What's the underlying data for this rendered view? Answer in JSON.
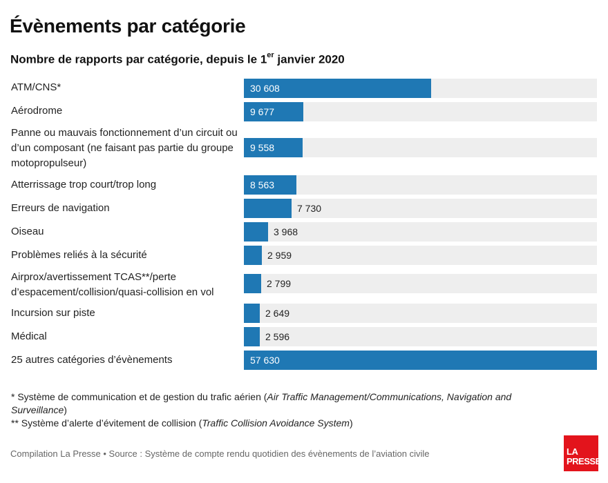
{
  "header": {
    "title": "Évènements par catégorie",
    "subtitle_pre": "Nombre de rapports par catégorie, depuis le 1",
    "subtitle_sup": "er",
    "subtitle_post": " janvier 2020"
  },
  "chart_data": {
    "type": "bar",
    "orientation": "horizontal",
    "categories": [
      "ATM/CNS*",
      "Aérodrome",
      "Panne ou mauvais fonctionnement d’un circuit ou d’un composant (ne faisant pas partie du groupe motopropulseur)",
      "Atterrissage trop court/trop long",
      "Erreurs de navigation",
      "Oiseau",
      "Problèmes reliés à la sécurité",
      "Airprox/avertissement TCAS**/perte d’espacement/collision/quasi-collision en vol",
      "Incursion sur piste",
      "Médical",
      "25 autres catégories d’évènements"
    ],
    "values": [
      30608,
      9677,
      9558,
      8563,
      7730,
      3968,
      2959,
      2799,
      2649,
      2596,
      57630
    ],
    "value_labels": [
      "30 608",
      "9 677",
      "9 558",
      "8 563",
      "7 730",
      "3 968",
      "2 959",
      "2 799",
      "2 649",
      "2 596",
      "57 630"
    ],
    "xlim": [
      0,
      57630
    ],
    "bar_color": "#1f78b4",
    "track_color": "#eeeeee"
  },
  "notes": {
    "note1_pre": "* Système de communication et de gestion du trafic aérien (",
    "note1_italic": "Air Traffic Management/Communications, Navigation and Surveillance",
    "note1_post": ")",
    "note2_pre": "** Système d’alerte d’évitement de collision (",
    "note2_italic": "Traffic Collision Avoidance System",
    "note2_post": ")"
  },
  "footer": {
    "source": "Compilation La Presse • Source : Système de compte rendu quotidien des évènements de l’aviation civile",
    "logo_line1": "LA",
    "logo_line2": "PRESSE"
  },
  "colors": {
    "brand_red": "#e3141c"
  }
}
